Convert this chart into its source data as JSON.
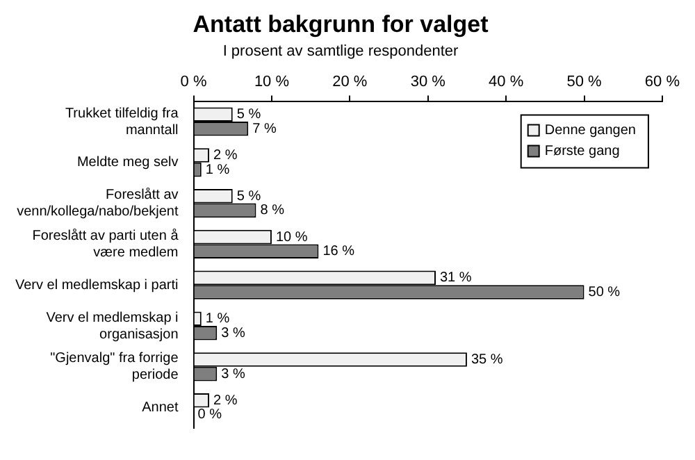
{
  "chart_data": {
    "type": "bar",
    "orientation": "horizontal",
    "title": "Antatt bakgrunn for valget",
    "subtitle": "I prosent av samtlige respondenter",
    "categories": [
      "Trukket tilfeldig fra manntall",
      "Meldte meg selv",
      "Foreslått av venn/kollega/nabo/bekjent",
      "Foreslått av parti uten å være medlem",
      "Verv el medlemskap i parti",
      "Verv el medlemskap i organisasjon",
      "\"Gjenvalg\" fra forrige periode",
      "Annet"
    ],
    "series": [
      {
        "name": "Denne gangen",
        "color": "#f0f0f0",
        "values": [
          5,
          2,
          5,
          10,
          31,
          1,
          35,
          2
        ],
        "value_labels": [
          "5 %",
          "2 %",
          "5 %",
          "10 %",
          "31 %",
          "1 %",
          "35 %",
          "2 %"
        ]
      },
      {
        "name": "Første gang",
        "color": "#7f7f7f",
        "values": [
          7,
          1,
          8,
          16,
          50,
          3,
          3,
          0
        ],
        "value_labels": [
          "7 %",
          "1 %",
          "8 %",
          "16 %",
          "50 %",
          "3 %",
          "3 %",
          "0 %"
        ]
      }
    ],
    "xlim": [
      0,
      60
    ],
    "xticks": [
      {
        "value": 0,
        "label": "0 %"
      },
      {
        "value": 10,
        "label": "10 %"
      },
      {
        "value": 20,
        "label": "20 %"
      },
      {
        "value": 30,
        "label": "30 %"
      },
      {
        "value": 40,
        "label": "40 %"
      },
      {
        "value": 50,
        "label": "50 %"
      },
      {
        "value": 60,
        "label": "60 %"
      }
    ],
    "grid": false,
    "legend": "top right"
  }
}
